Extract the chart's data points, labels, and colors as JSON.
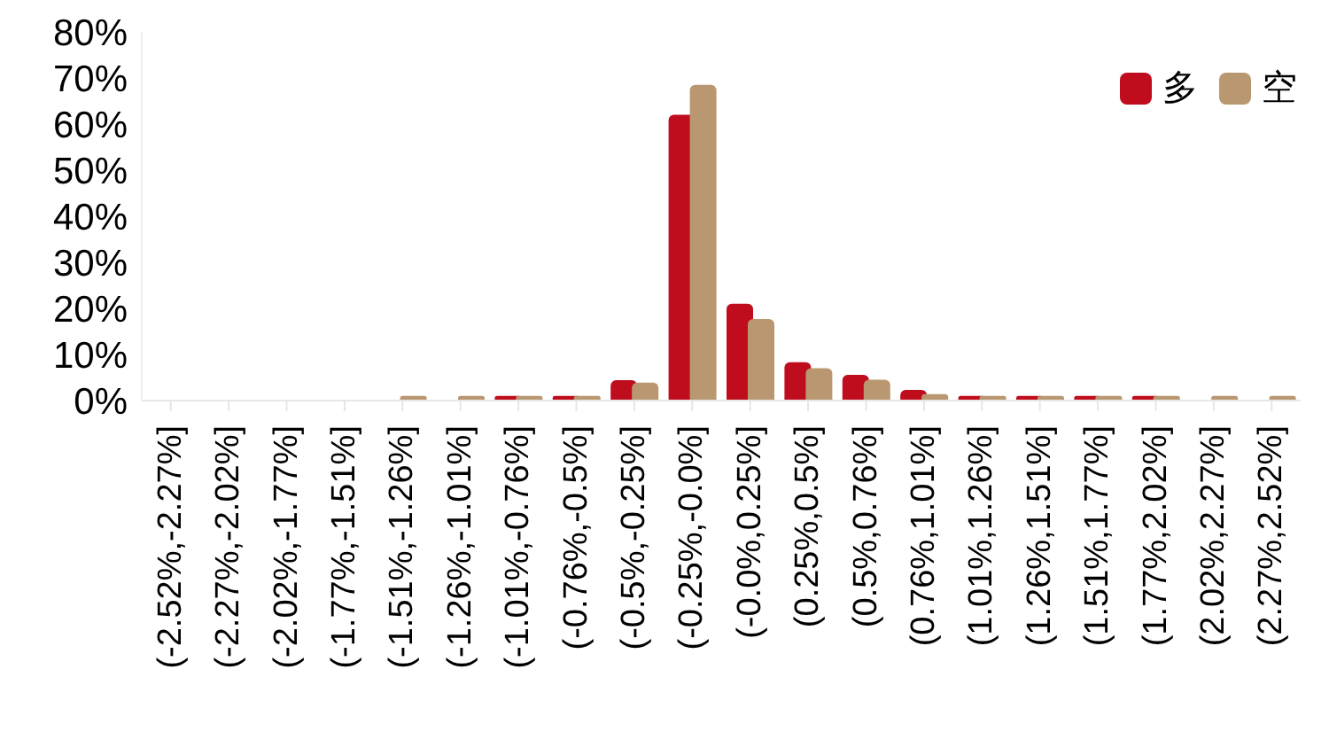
{
  "chart_data": {
    "type": "bar",
    "categories": [
      "(-2.52%,-2.27%]",
      "(-2.27%,-2.02%]",
      "(-2.02%,-1.77%]",
      "(-1.77%,-1.51%]",
      "(-1.51%,-1.26%]",
      "(-1.26%,-1.01%]",
      "(-1.01%,-0.76%]",
      "(-0.76%,-0.5%]",
      "(-0.5%,-0.25%]",
      "(-0.25%,-0.0%]",
      "(-0.0%,0.25%]",
      "(0.25%,0.5%]",
      "(0.5%,0.76%]",
      "(0.76%,1.01%]",
      "(1.01%,1.26%]",
      "(1.26%,1.51%]",
      "(1.51%,1.77%]",
      "(1.77%,2.02%]",
      "(2.02%,2.27%]",
      "(2.27%,2.52%]"
    ],
    "series": [
      {
        "name": "多",
        "color": "#c00d1e",
        "values": [
          0,
          0,
          0,
          0,
          0,
          0,
          1,
          1,
          4.4,
          62,
          21,
          8.3,
          5.6,
          2.3,
          1,
          1,
          1,
          1,
          0,
          0
        ]
      },
      {
        "name": "空",
        "color": "#b99871",
        "values": [
          0,
          0,
          0,
          0,
          1,
          1,
          1,
          1,
          3.9,
          68.5,
          17.7,
          7,
          4.5,
          1.4,
          1,
          1,
          1,
          1,
          1,
          1
        ]
      }
    ],
    "ylim": [
      0,
      80
    ],
    "yticks": [
      {
        "value": 0,
        "label": "0%"
      },
      {
        "value": 10,
        "label": "10%"
      },
      {
        "value": 20,
        "label": "20%"
      },
      {
        "value": 30,
        "label": "30%"
      },
      {
        "value": 40,
        "label": "40%"
      },
      {
        "value": 50,
        "label": "50%"
      },
      {
        "value": 60,
        "label": "60%"
      },
      {
        "value": 70,
        "label": "70%"
      },
      {
        "value": 80,
        "label": "80%"
      }
    ],
    "grid": false,
    "legend": "top right"
  }
}
